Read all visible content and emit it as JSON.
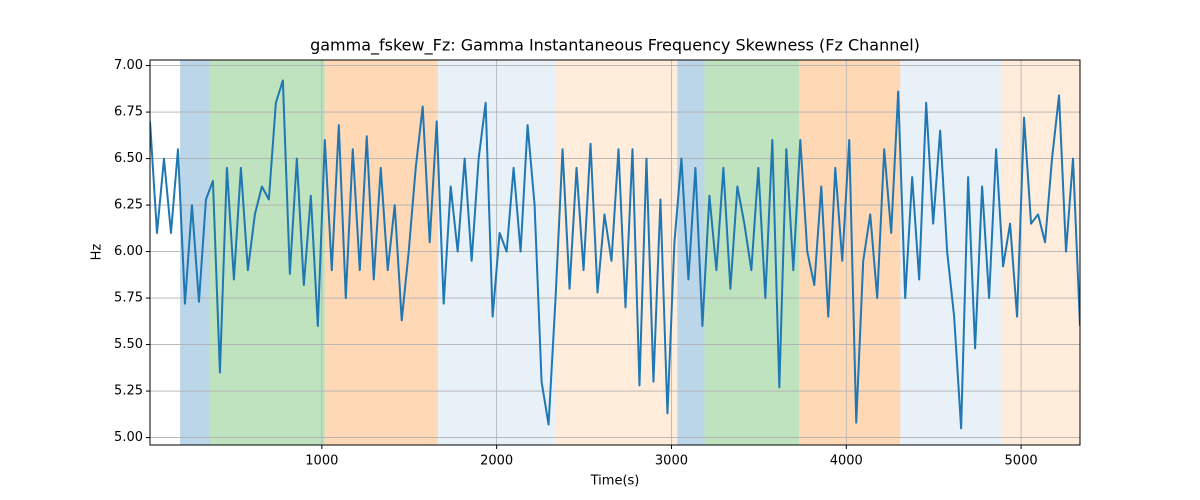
{
  "chart_data": {
    "type": "line",
    "title": "gamma_fskew_Fz: Gamma Instantaneous Frequency Skewness (Fz Channel)",
    "x_label": "Time(s)",
    "y_label": "Hz",
    "color": "#1f77b4",
    "grid": true,
    "xlim": [
      17,
      5337
    ],
    "ylim": [
      4.96,
      7.03
    ],
    "xticks": [
      1000,
      2000,
      3000,
      4000,
      5000
    ],
    "yticks": [
      {
        "value": 5,
        "label": "5.00"
      },
      {
        "value": 5.25,
        "label": "5.25"
      },
      {
        "value": 5.5,
        "label": "5.50"
      },
      {
        "value": 5.75,
        "label": "5.75"
      },
      {
        "value": 6,
        "label": "6.00"
      },
      {
        "value": 6.25,
        "label": "6.25"
      },
      {
        "value": 6.5,
        "label": "6.50"
      },
      {
        "value": 6.75,
        "label": "6.75"
      },
      {
        "value": 7,
        "label": "7.00"
      }
    ],
    "spans": [
      {
        "x0": 189,
        "x1": 360,
        "color": "#1f77b4",
        "opacity": 0.3
      },
      {
        "x0": 360,
        "x1": 1017,
        "color": "#2ca02c",
        "opacity": 0.3
      },
      {
        "x0": 1017,
        "x1": 1663,
        "color": "#ff7f0e",
        "opacity": 0.3
      },
      {
        "x0": 1663,
        "x1": 2337,
        "color": "#1f77b4",
        "opacity": 0.1
      },
      {
        "x0": 2337,
        "x1": 3034,
        "color": "#ff7f0e",
        "opacity": 0.15
      },
      {
        "x0": 3034,
        "x1": 3189,
        "color": "#1f77b4",
        "opacity": 0.3
      },
      {
        "x0": 3189,
        "x1": 3731,
        "color": "#2ca02c",
        "opacity": 0.3
      },
      {
        "x0": 3731,
        "x1": 4309,
        "color": "#ff7f0e",
        "opacity": 0.3
      },
      {
        "x0": 4309,
        "x1": 4886,
        "color": "#1f77b4",
        "opacity": 0.1
      },
      {
        "x0": 4886,
        "x1": 5337,
        "color": "#ff7f0e",
        "opacity": 0.15
      }
    ],
    "x": [
      17,
      57,
      97,
      137,
      177,
      217,
      257,
      297,
      337,
      377,
      417,
      457,
      497,
      537,
      577,
      617,
      657,
      697,
      737,
      777,
      817,
      857,
      897,
      937,
      977,
      1017,
      1057,
      1097,
      1137,
      1177,
      1217,
      1257,
      1297,
      1337,
      1377,
      1417,
      1457,
      1497,
      1537,
      1577,
      1617,
      1657,
      1697,
      1737,
      1777,
      1817,
      1857,
      1897,
      1937,
      1977,
      2017,
      2057,
      2097,
      2137,
      2177,
      2217,
      2257,
      2297,
      2337,
      2377,
      2417,
      2457,
      2497,
      2537,
      2577,
      2617,
      2657,
      2697,
      2737,
      2777,
      2817,
      2857,
      2897,
      2937,
      2977,
      3017,
      3057,
      3097,
      3137,
      3177,
      3217,
      3257,
      3297,
      3337,
      3377,
      3417,
      3457,
      3497,
      3537,
      3577,
      3617,
      3657,
      3697,
      3737,
      3777,
      3817,
      3857,
      3897,
      3937,
      3977,
      4017,
      4057,
      4097,
      4137,
      4177,
      4217,
      4257,
      4297,
      4337,
      4377,
      4417,
      4457,
      4497,
      4537,
      4577,
      4617,
      4657,
      4697,
      4737,
      4777,
      4817,
      4857,
      4897,
      4937,
      4977,
      5017,
      5057,
      5097,
      5137,
      5177,
      5217,
      5257,
      5297,
      5337
    ],
    "values": [
      6.7,
      6.1,
      6.5,
      6.1,
      6.55,
      5.72,
      6.25,
      5.73,
      6.28,
      6.38,
      5.35,
      6.45,
      5.85,
      6.45,
      5.9,
      6.2,
      6.35,
      6.28,
      6.8,
      6.92,
      5.88,
      6.5,
      5.82,
      6.3,
      5.6,
      6.6,
      5.9,
      6.68,
      5.75,
      6.55,
      5.9,
      6.62,
      5.85,
      6.45,
      5.9,
      6.25,
      5.63,
      6.0,
      6.45,
      6.78,
      6.05,
      6.7,
      5.72,
      6.35,
      6.0,
      6.5,
      5.95,
      6.5,
      6.8,
      5.65,
      6.1,
      6.0,
      6.45,
      6.0,
      6.68,
      6.25,
      5.3,
      5.07,
      5.75,
      6.55,
      5.8,
      6.45,
      5.9,
      6.58,
      5.78,
      6.2,
      5.95,
      6.55,
      5.7,
      6.55,
      5.28,
      6.5,
      5.3,
      6.28,
      5.13,
      6.05,
      6.5,
      5.85,
      6.45,
      5.6,
      6.3,
      5.9,
      6.45,
      5.8,
      6.35,
      6.15,
      5.9,
      6.45,
      5.75,
      6.6,
      5.27,
      6.55,
      5.9,
      6.6,
      6.0,
      5.82,
      6.35,
      5.65,
      6.45,
      5.95,
      6.6,
      5.08,
      5.95,
      6.2,
      5.75,
      6.55,
      6.1,
      6.86,
      5.75,
      6.4,
      5.85,
      6.8,
      6.15,
      6.65,
      6.0,
      5.65,
      5.05,
      6.4,
      5.48,
      6.35,
      5.75,
      6.55,
      5.92,
      6.15,
      5.65,
      6.72,
      6.15,
      6.2,
      6.05,
      6.5,
      6.84,
      6.0,
      6.5,
      5.6
    ]
  }
}
